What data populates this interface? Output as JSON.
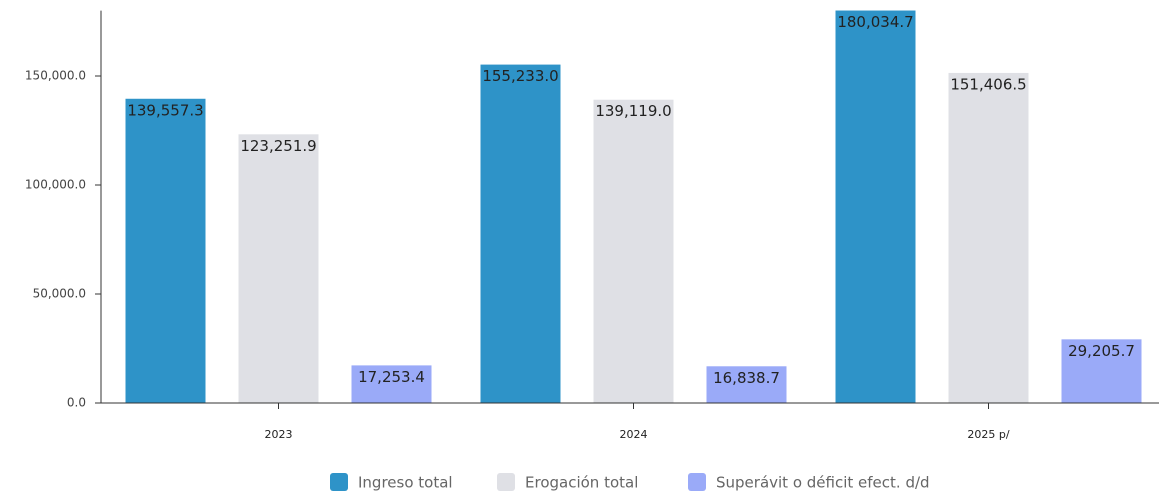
{
  "chart_data": {
    "type": "bar",
    "categories": [
      "2023",
      "2024",
      "2025 p/"
    ],
    "series": [
      {
        "name": "Ingreso total",
        "color": "#2e93c8",
        "values": [
          139557.3,
          155233.0,
          180034.7
        ],
        "value_labels": [
          "139,557.3",
          "155,233.0",
          "180,034.7"
        ]
      },
      {
        "name": "Erogación total",
        "color": "#dfe0e5",
        "values": [
          123251.9,
          139119.0,
          151406.5
        ],
        "value_labels": [
          "123,251.9",
          "139,119.0",
          "151,406.5"
        ]
      },
      {
        "name": "Superávit o déficit efect. d/d",
        "color": "#9aaaf8",
        "values": [
          17253.4,
          16838.7,
          29205.7
        ],
        "value_labels": [
          "17,253.4",
          "16,838.7",
          "29,205.7"
        ]
      }
    ],
    "ylim": [
      0,
      180000
    ],
    "yticks": [
      {
        "value": 0,
        "label": "0.0"
      },
      {
        "value": 50000,
        "label": "50,000.0"
      },
      {
        "value": 100000,
        "label": "100,000.0"
      },
      {
        "value": 150000,
        "label": "150,000.0"
      }
    ],
    "legend": "bottom"
  }
}
